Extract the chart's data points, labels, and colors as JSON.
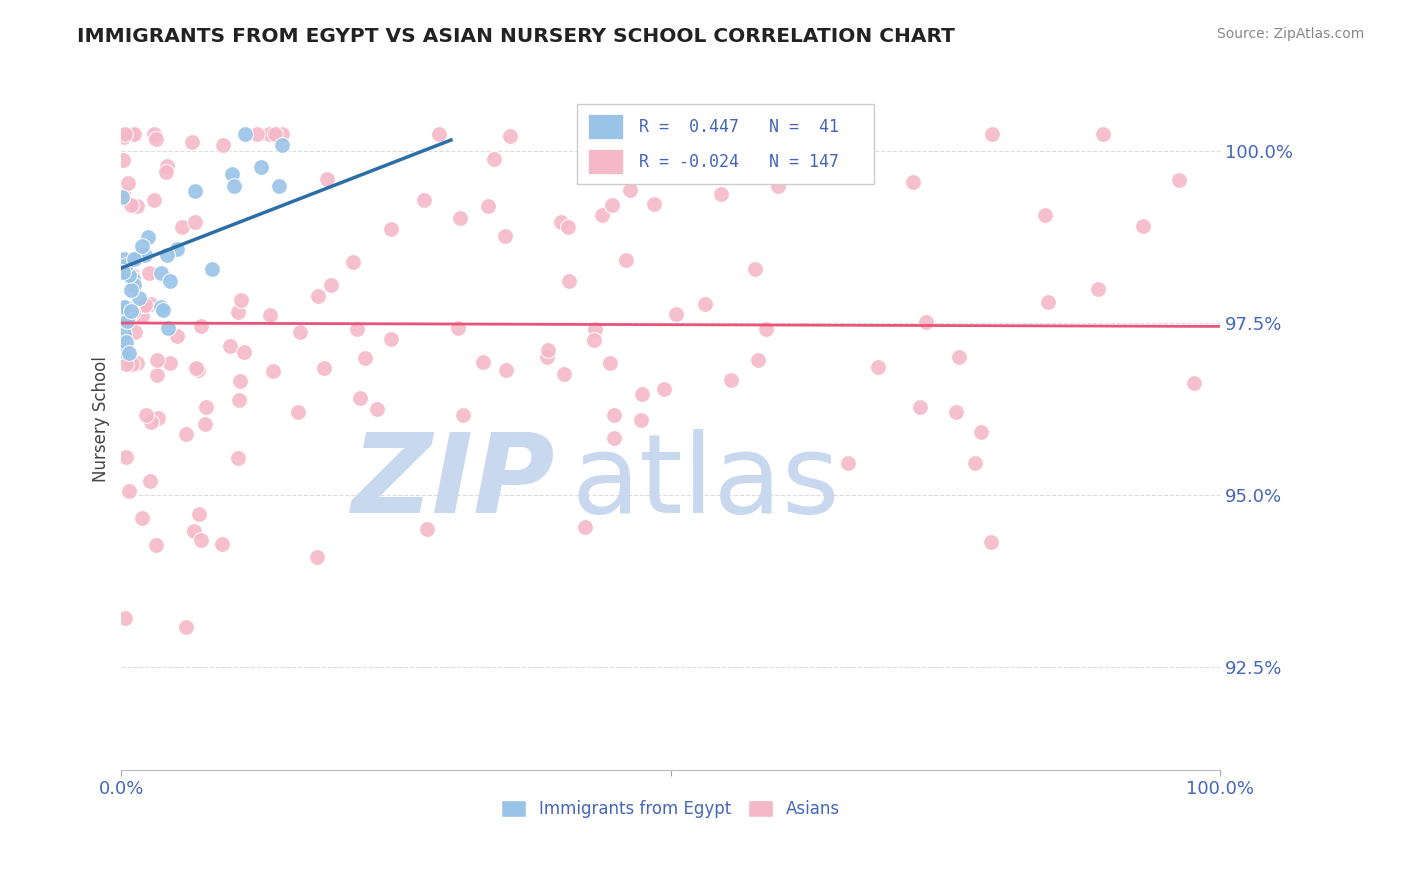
{
  "title": "IMMIGRANTS FROM EGYPT VS ASIAN NURSERY SCHOOL CORRELATION CHART",
  "source": "Source: ZipAtlas.com",
  "ylabel": "Nursery School",
  "xlim": [
    0.0,
    100.0
  ],
  "ylim": [
    91.0,
    101.2
  ],
  "yticks": [
    92.5,
    95.0,
    97.5,
    100.0
  ],
  "ytick_labels": [
    "92.5%",
    "95.0%",
    "97.5%",
    "100.0%"
  ],
  "blue_R": 0.447,
  "blue_N": 41,
  "pink_R": -0.024,
  "pink_N": 147,
  "blue_dot_color": "#99C4E8",
  "pink_dot_color": "#F5B8C8",
  "blue_line_color": "#2E6EA6",
  "pink_line_color": "#E8547A",
  "legend_label_blue": "Immigrants from Egypt",
  "legend_label_pink": "Asians",
  "watermark_zip": "ZIP",
  "watermark_atlas": "atlas",
  "watermark_color_zip": "#C8D8EE",
  "watermark_color_atlas": "#C8D8EE",
  "title_color": "#222222",
  "axis_label_color": "#4466BB",
  "tick_label_color": "#4466BB",
  "grid_color": "#DDDDDD",
  "background_color": "#FFFFFF"
}
